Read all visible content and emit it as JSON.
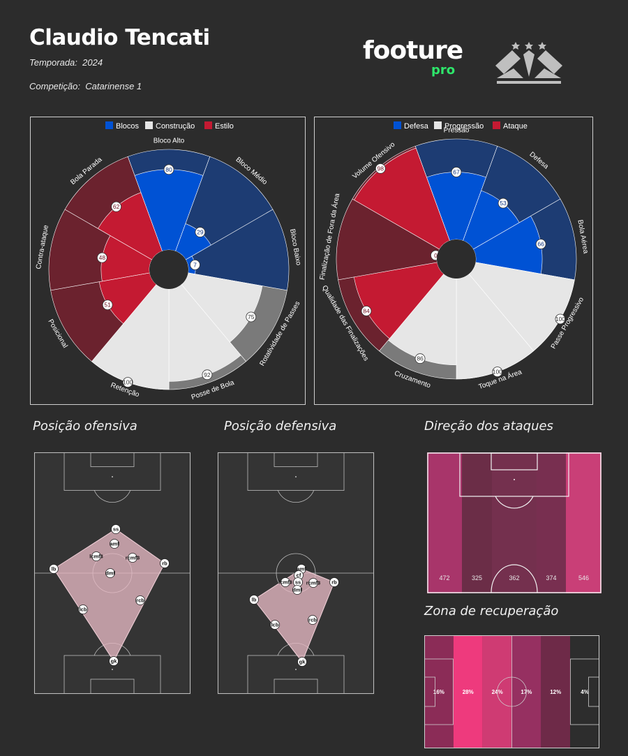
{
  "header": {
    "player": "Claudio Tencati",
    "season_label": "Temporada:",
    "season": "2024",
    "competition_label": "Competição:",
    "competition": "Catarinense 1",
    "brand_main": "footure",
    "brand_sub": "pro",
    "brand_color": "#2ee66b"
  },
  "sections": {
    "offensive": "Posição ofensiva",
    "defensive": "Posição defensiva",
    "attack_direction": "Direção dos ataques",
    "recovery": "Zona de recuperação"
  },
  "chart_data": [
    {
      "type": "polar-area",
      "legend": [
        {
          "name": "Blocos",
          "color": "#0052d4"
        },
        {
          "name": "Construção",
          "color": "#e6e6e6"
        },
        {
          "name": "Estilo",
          "color": "#c41a32"
        }
      ],
      "categories": [
        "Bloco Alto",
        "Bloco Médio",
        "Bloco Baixo",
        "Rotatividade de Passes",
        "Posse de Bola",
        "Retenção",
        "Posicional",
        "Contra-ataque",
        "Bola Parada"
      ],
      "groups": [
        "Blocos",
        "Blocos",
        "Blocos",
        "Construção",
        "Construção",
        "Construção",
        "Estilo",
        "Estilo",
        "Estilo"
      ],
      "values": [
        80,
        29,
        7,
        75,
        92,
        100,
        51,
        48,
        62
      ],
      "ylim": [
        0,
        100
      ]
    },
    {
      "type": "polar-area",
      "legend": [
        {
          "name": "Defesa",
          "color": "#0052d4"
        },
        {
          "name": "Progressão",
          "color": "#e6e6e6"
        },
        {
          "name": "Ataque",
          "color": "#c41a32"
        }
      ],
      "categories": [
        "Pressão",
        "Defesa",
        "Bola Aérea",
        "Passe Progressivo",
        "Toque na Área",
        "Cruzamento",
        "Qualidade das Finalizações",
        "Finalização de Fora da Área",
        "Volume Ofensivo"
      ],
      "groups": [
        "Defesa",
        "Defesa",
        "Defesa",
        "Progressão",
        "Progressão",
        "Progressão",
        "Ataque",
        "Ataque",
        "Ataque"
      ],
      "values": [
        67,
        53,
        66,
        100,
        100,
        86,
        84,
        0,
        98
      ],
      "ylim": [
        0,
        100
      ]
    },
    {
      "type": "heatmap",
      "title": "Direção dos ataques",
      "orientation": "vertical lanes",
      "values": [
        472,
        325,
        362,
        374,
        546
      ]
    },
    {
      "type": "heatmap",
      "title": "Zona de recuperação",
      "orientation": "horizontal zones",
      "labels": [
        "16%",
        "28%",
        "24%",
        "17%",
        "12%",
        "4%"
      ],
      "values": [
        16,
        28,
        24,
        17,
        12,
        4
      ]
    }
  ],
  "offensive_positions": [
    "ss",
    "amf",
    "lcmf3",
    "rcmf3",
    "lb",
    "rb",
    "dmf",
    "lcb",
    "rcb",
    "gk"
  ],
  "defensive_positions": [
    "amf",
    "cf",
    "lcmf3",
    "ss",
    "rcmf3",
    "dmf",
    "rb",
    "lb",
    "lcb",
    "rcb",
    "gk"
  ]
}
